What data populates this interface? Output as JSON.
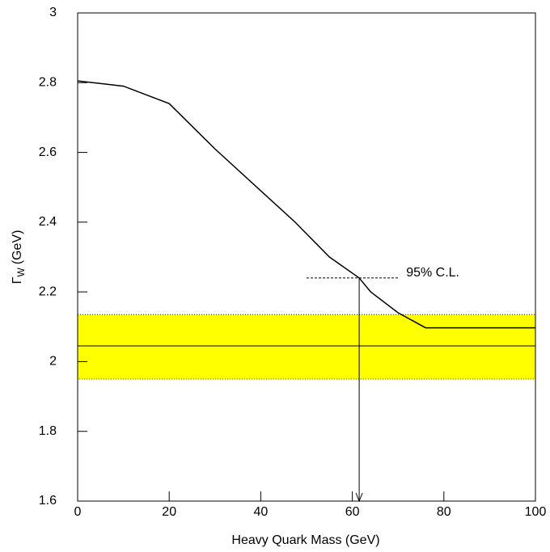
{
  "chart_data": {
    "type": "line",
    "xlabel": "Heavy Quark Mass (GeV)",
    "ylabel": {
      "symbol": "Γ",
      "subscript": "W",
      "unit": "(GeV)"
    },
    "x": [
      0,
      10,
      20,
      30,
      40,
      47.5,
      55,
      61.5,
      64,
      70,
      76,
      100
    ],
    "values": [
      2.805,
      2.79,
      2.74,
      2.61,
      2.49,
      2.4,
      2.3,
      2.24,
      2.2,
      2.14,
      2.097,
      2.097
    ],
    "color": "#000000",
    "band": {
      "low": 1.95,
      "high": 2.135,
      "center": 2.045,
      "color": "#ffff00"
    },
    "limit": {
      "y": 2.24,
      "x": [
        50,
        70
      ],
      "arrow_x": 61.5,
      "label": "95% C.L."
    },
    "xlim": [
      0,
      100
    ],
    "xticks": [
      0,
      20,
      40,
      60,
      80,
      100
    ],
    "ylim": [
      1.6,
      3
    ],
    "yticks": [
      1.6,
      1.8,
      2,
      2.2,
      2.4,
      2.6,
      2.8,
      3
    ]
  }
}
